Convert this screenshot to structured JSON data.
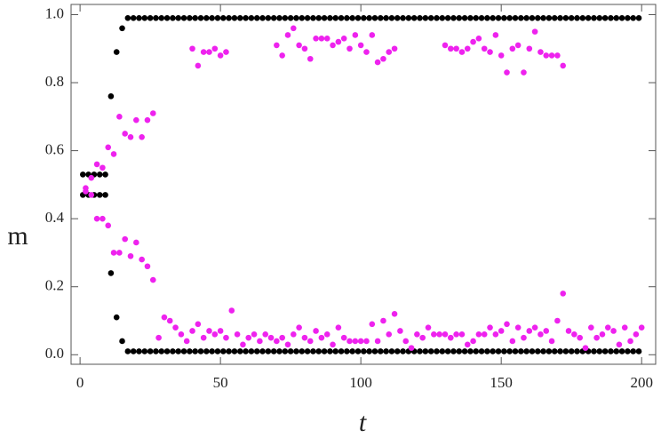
{
  "chart_data": {
    "type": "scatter",
    "xlabel": "t",
    "ylabel": "m",
    "xlim": [
      -3.2,
      205
    ],
    "ylim": [
      -0.028,
      1.03
    ],
    "xticks": [
      0,
      50,
      100,
      150,
      200
    ],
    "yticks": [
      {
        "value": 0,
        "label": "0.0"
      },
      {
        "value": 0.2,
        "label": "0.2"
      },
      {
        "value": 0.4,
        "label": "0.4"
      },
      {
        "value": 0.6,
        "label": "0.6"
      },
      {
        "value": 0.8,
        "label": "0.8"
      },
      {
        "value": 1,
        "label": "1.0"
      }
    ],
    "series": [
      {
        "color": "#000000",
        "x": [
          1,
          3,
          5,
          7,
          9,
          11,
          13,
          15,
          17,
          19,
          21,
          23,
          25,
          27,
          29,
          31,
          33,
          35,
          37,
          39,
          41,
          43,
          45,
          47,
          49,
          51,
          53,
          55,
          57,
          59,
          61,
          63,
          65,
          67,
          69,
          71,
          73,
          75,
          77,
          79,
          81,
          83,
          85,
          87,
          89,
          91,
          93,
          95,
          97,
          99,
          101,
          103,
          105,
          107,
          109,
          111,
          113,
          115,
          117,
          119,
          121,
          123,
          125,
          127,
          129,
          131,
          133,
          135,
          137,
          139,
          141,
          143,
          145,
          147,
          149,
          151,
          153,
          155,
          157,
          159,
          161,
          163,
          165,
          167,
          169,
          171,
          173,
          175,
          177,
          179,
          181,
          183,
          185,
          187,
          189,
          191,
          193,
          195,
          197,
          199
        ],
        "values": [
          0.53,
          0.53,
          0.53,
          0.53,
          0.53,
          0.76,
          0.89,
          0.96,
          0.99,
          0.99,
          0.99,
          0.99,
          0.99,
          0.99,
          0.99,
          0.99,
          0.99,
          0.99,
          0.99,
          0.99,
          0.99,
          0.99,
          0.99,
          0.99,
          0.99,
          0.99,
          0.99,
          0.99,
          0.99,
          0.99,
          0.99,
          0.99,
          0.99,
          0.99,
          0.99,
          0.99,
          0.99,
          0.99,
          0.99,
          0.99,
          0.99,
          0.99,
          0.99,
          0.99,
          0.99,
          0.99,
          0.99,
          0.99,
          0.99,
          0.99,
          0.99,
          0.99,
          0.99,
          0.99,
          0.99,
          0.99,
          0.99,
          0.99,
          0.99,
          0.99,
          0.99,
          0.99,
          0.99,
          0.99,
          0.99,
          0.99,
          0.99,
          0.99,
          0.99,
          0.99,
          0.99,
          0.99,
          0.99,
          0.99,
          0.99,
          0.99,
          0.99,
          0.99,
          0.99,
          0.99,
          0.99,
          0.99,
          0.99,
          0.99,
          0.99,
          0.99,
          0.99,
          0.99,
          0.99,
          0.99,
          0.99,
          0.99,
          0.99,
          0.99,
          0.99,
          0.99,
          0.99,
          0.99,
          0.99,
          0.99
        ]
      },
      {
        "color": "#000000",
        "x": [
          1,
          3,
          5,
          7,
          9,
          11,
          13,
          15,
          17,
          19,
          21,
          23,
          25,
          27,
          29,
          31,
          33,
          35,
          37,
          39,
          41,
          43,
          45,
          47,
          49,
          51,
          53,
          55,
          57,
          59,
          61,
          63,
          65,
          67,
          69,
          71,
          73,
          75,
          77,
          79,
          81,
          83,
          85,
          87,
          89,
          91,
          93,
          95,
          97,
          99,
          101,
          103,
          105,
          107,
          109,
          111,
          113,
          115,
          117,
          119,
          121,
          123,
          125,
          127,
          129,
          131,
          133,
          135,
          137,
          139,
          141,
          143,
          145,
          147,
          149,
          151,
          153,
          155,
          157,
          159,
          161,
          163,
          165,
          167,
          169,
          171,
          173,
          175,
          177,
          179,
          181,
          183,
          185,
          187,
          189,
          191,
          193,
          195,
          197,
          199
        ],
        "values": [
          0.47,
          0.47,
          0.47,
          0.47,
          0.47,
          0.24,
          0.11,
          0.04,
          0.01,
          0.01,
          0.01,
          0.01,
          0.01,
          0.01,
          0.01,
          0.01,
          0.01,
          0.01,
          0.01,
          0.01,
          0.01,
          0.01,
          0.01,
          0.01,
          0.01,
          0.01,
          0.01,
          0.01,
          0.01,
          0.01,
          0.01,
          0.01,
          0.01,
          0.01,
          0.01,
          0.01,
          0.01,
          0.01,
          0.01,
          0.01,
          0.01,
          0.01,
          0.01,
          0.01,
          0.01,
          0.01,
          0.01,
          0.01,
          0.01,
          0.01,
          0.01,
          0.01,
          0.01,
          0.01,
          0.01,
          0.01,
          0.01,
          0.01,
          0.01,
          0.01,
          0.01,
          0.01,
          0.01,
          0.01,
          0.01,
          0.01,
          0.01,
          0.01,
          0.01,
          0.01,
          0.01,
          0.01,
          0.01,
          0.01,
          0.01,
          0.01,
          0.01,
          0.01,
          0.01,
          0.01,
          0.01,
          0.01,
          0.01,
          0.01,
          0.01,
          0.01,
          0.01,
          0.01,
          0.01,
          0.01,
          0.01,
          0.01,
          0.01,
          0.01,
          0.01,
          0.01,
          0.01,
          0.01,
          0.01,
          0.01
        ]
      },
      {
        "color": "#ee22ee",
        "x": [
          2,
          4,
          6,
          8,
          10,
          12,
          14,
          16,
          18,
          20,
          22,
          24,
          26,
          40,
          42,
          44,
          46,
          48,
          50,
          52,
          70,
          72,
          74,
          76,
          78,
          80,
          82,
          84,
          86,
          88,
          90,
          92,
          94,
          96,
          98,
          100,
          102,
          104,
          106,
          108,
          110,
          112,
          130,
          132,
          134,
          136,
          138,
          140,
          142,
          144,
          146,
          148,
          150,
          152,
          154,
          156,
          158,
          160,
          162,
          164,
          166,
          168,
          170,
          172
        ],
        "values": [
          0.49,
          0.52,
          0.56,
          0.55,
          0.61,
          0.59,
          0.7,
          0.65,
          0.64,
          0.69,
          0.64,
          0.69,
          0.71,
          0.9,
          0.85,
          0.89,
          0.89,
          0.9,
          0.88,
          0.89,
          0.91,
          0.88,
          0.94,
          0.96,
          0.91,
          0.9,
          0.87,
          0.93,
          0.93,
          0.93,
          0.91,
          0.92,
          0.93,
          0.9,
          0.94,
          0.91,
          0.89,
          0.94,
          0.86,
          0.87,
          0.89,
          0.9,
          0.91,
          0.9,
          0.9,
          0.89,
          0.9,
          0.92,
          0.93,
          0.9,
          0.89,
          0.94,
          0.88,
          0.83,
          0.9,
          0.91,
          0.83,
          0.9,
          0.95,
          0.89,
          0.88,
          0.88,
          0.88,
          0.85
        ]
      },
      {
        "color": "#ee22ee",
        "x": [
          2,
          4,
          6,
          8,
          10,
          12,
          14,
          16,
          18,
          20,
          22,
          24,
          26,
          28,
          30,
          32,
          34,
          36,
          38,
          40,
          42,
          44,
          46,
          48,
          50,
          52,
          54,
          56,
          58,
          60,
          62,
          64,
          66,
          68,
          70,
          72,
          74,
          76,
          78,
          80,
          82,
          84,
          86,
          88,
          90,
          92,
          94,
          96,
          98,
          100,
          102,
          104,
          106,
          108,
          110,
          112,
          114,
          116,
          118,
          120,
          122,
          124,
          126,
          128,
          130,
          132,
          134,
          136,
          138,
          140,
          142,
          144,
          146,
          148,
          150,
          152,
          154,
          156,
          158,
          160,
          162,
          164,
          166,
          168,
          170,
          172,
          174,
          176,
          178,
          180,
          182,
          184,
          186,
          188,
          190,
          192,
          194,
          196,
          198,
          200
        ],
        "values": [
          0.48,
          0.47,
          0.4,
          0.4,
          0.38,
          0.3,
          0.3,
          0.34,
          0.29,
          0.33,
          0.28,
          0.26,
          0.22,
          0.05,
          0.11,
          0.1,
          0.08,
          0.06,
          0.04,
          0.07,
          0.09,
          0.05,
          0.07,
          0.06,
          0.07,
          0.05,
          0.13,
          0.06,
          0.03,
          0.05,
          0.06,
          0.04,
          0.06,
          0.05,
          0.04,
          0.05,
          0.03,
          0.06,
          0.08,
          0.05,
          0.04,
          0.07,
          0.05,
          0.06,
          0.03,
          0.08,
          0.05,
          0.04,
          0.04,
          0.04,
          0.04,
          0.09,
          0.04,
          0.1,
          0.06,
          0.12,
          0.07,
          0.04,
          0.02,
          0.06,
          0.05,
          0.08,
          0.06,
          0.06,
          0.06,
          0.05,
          0.06,
          0.06,
          0.03,
          0.04,
          0.06,
          0.06,
          0.08,
          0.06,
          0.07,
          0.09,
          0.04,
          0.08,
          0.05,
          0.07,
          0.08,
          0.06,
          0.07,
          0.04,
          0.1,
          0.18,
          0.07,
          0.06,
          0.05,
          0.02,
          0.08,
          0.05,
          0.06,
          0.08,
          0.07,
          0.03,
          0.08,
          0.04,
          0.06,
          0.08
        ]
      }
    ]
  }
}
